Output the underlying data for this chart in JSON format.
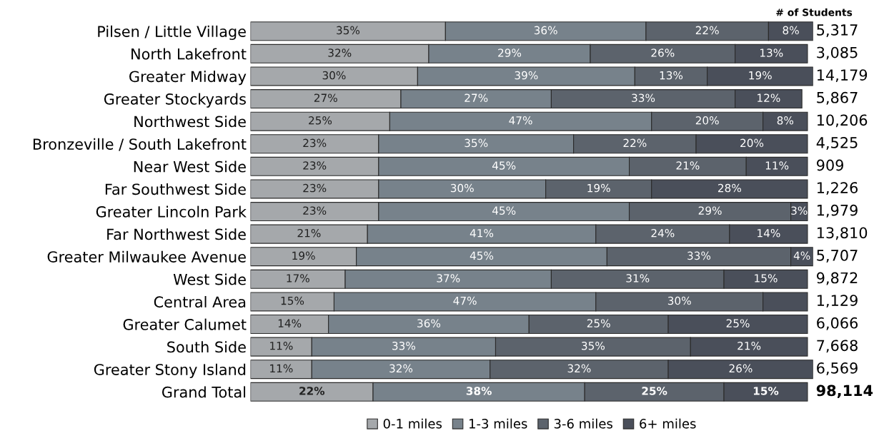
{
  "chart_data": {
    "type": "bar",
    "orientation": "horizontal",
    "stacked": true,
    "legend": "bottom",
    "grid": false,
    "categories": [
      "Pilsen / Little Village",
      "North Lakefront",
      "Greater Midway",
      "Greater Stockyards",
      "Northwest Side",
      "Bronzeville / South Lakefront",
      "Near West Side",
      "Far Southwest Side",
      "Greater Lincoln Park",
      "Far Northwest Side",
      "Greater Milwaukee Avenue",
      "West Side",
      "Central Area",
      "Greater Calumet",
      "South Side",
      "Greater Stony Island",
      "Grand Total"
    ],
    "series": [
      {
        "name": "0-1 miles",
        "color": "#a5a8ab",
        "values": [
          35,
          32,
          30,
          27,
          25,
          23,
          23,
          23,
          23,
          21,
          19,
          17,
          15,
          14,
          11,
          11,
          22
        ],
        "value_labels": [
          "35%",
          "32%",
          "30%",
          "27%",
          "25%",
          "23%",
          "23%",
          "23%",
          "23%",
          "21%",
          "19%",
          "17%",
          "15%",
          "14%",
          "11%",
          "11%",
          "22%"
        ]
      },
      {
        "name": "1-3 miles",
        "color": "#77828b",
        "values": [
          36,
          29,
          39,
          27,
          47,
          35,
          45,
          30,
          45,
          41,
          45,
          37,
          47,
          36,
          33,
          32,
          38
        ],
        "value_labels": [
          "36%",
          "29%",
          "39%",
          "27%",
          "47%",
          "35%",
          "45%",
          "30%",
          "45%",
          "41%",
          "45%",
          "37%",
          "47%",
          "36%",
          "33%",
          "32%",
          "38%"
        ]
      },
      {
        "name": "3-6 miles",
        "color": "#5c636c",
        "values": [
          22,
          26,
          13,
          33,
          20,
          22,
          21,
          19,
          29,
          24,
          33,
          31,
          30,
          25,
          35,
          32,
          25
        ],
        "value_labels": [
          "22%",
          "26%",
          "13%",
          "33%",
          "20%",
          "22%",
          "21%",
          "19%",
          "29%",
          "24%",
          "33%",
          "31%",
          "30%",
          "25%",
          "35%",
          "32%",
          "25%"
        ]
      },
      {
        "name": "6+ miles",
        "color": "#4a4f5a",
        "values": [
          8,
          13,
          19,
          12,
          8,
          20,
          11,
          28,
          3,
          14,
          4,
          15,
          8,
          25,
          21,
          26,
          15
        ],
        "value_labels": [
          "8%",
          "13%",
          "19%",
          "12%",
          "8%",
          "20%",
          "11%",
          "28%",
          "3%",
          "14%",
          "4%",
          "15%",
          null,
          "25%",
          "21%",
          "26%",
          "15%"
        ]
      }
    ],
    "annotations": [
      "# of Students",
      "5,317",
      "3,085",
      "14,179",
      "5,867",
      "10,206",
      "4,525",
      "909",
      "1,226",
      "1,979",
      "13,810",
      "5,707",
      "9,872",
      "1,129",
      "6,066",
      "7,668",
      "6,569",
      "98,114"
    ]
  }
}
